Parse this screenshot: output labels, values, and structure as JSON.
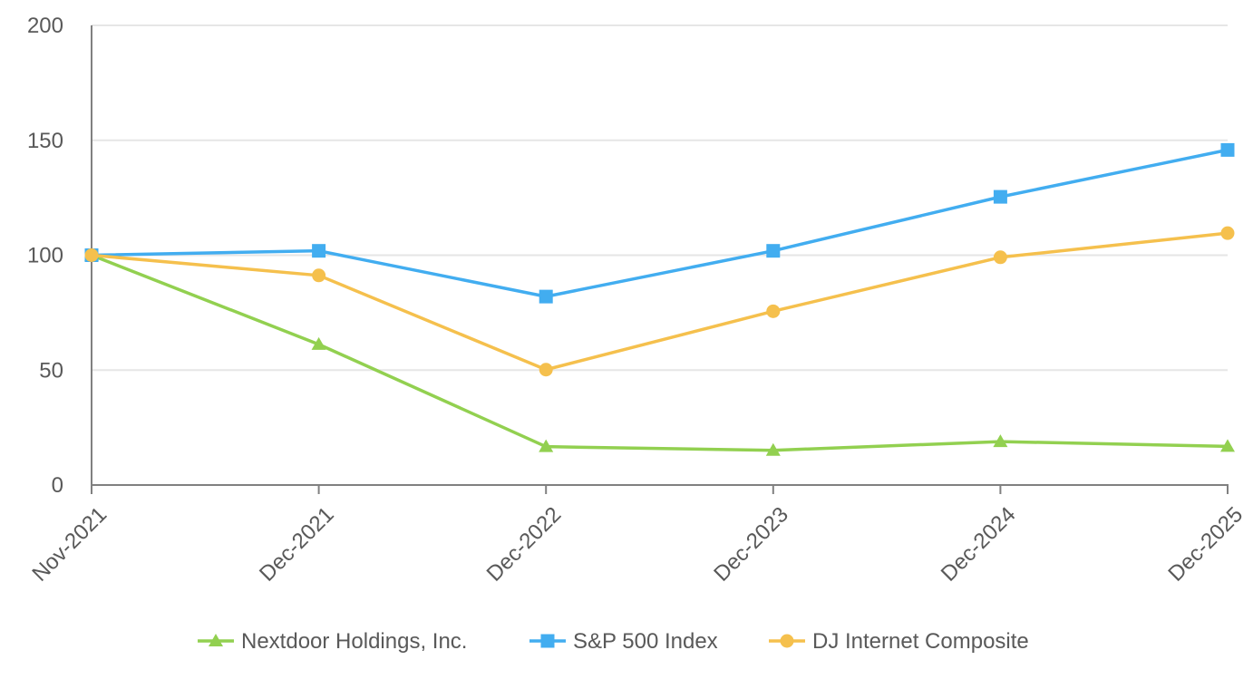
{
  "chart_data": {
    "type": "line",
    "title": "",
    "xlabel": "",
    "ylabel": "",
    "categories": [
      "Nov-2021",
      "Dec-2021",
      "Dec-2022",
      "Dec-2023",
      "Dec-2024",
      "Dec-2025"
    ],
    "ylim": [
      0,
      200
    ],
    "yticks": [
      0,
      50,
      100,
      150,
      200
    ],
    "grid": true,
    "legend_position": "bottom",
    "series": [
      {
        "name": "Nextdoor Holdings, Inc.",
        "marker": "triangle",
        "color": "#92D050",
        "values": [
          100,
          61.2,
          16.7,
          15.1,
          18.9,
          16.8
        ]
      },
      {
        "name": "S&P 500 Index",
        "marker": "square",
        "color": "#42ADF0",
        "values": [
          100,
          101.9,
          82.0,
          101.9,
          125.4,
          145.8
        ]
      },
      {
        "name": "DJ Internet Composite",
        "marker": "circle",
        "color": "#F5C04D",
        "values": [
          100,
          91.2,
          50.2,
          75.6,
          99.1,
          109.6
        ]
      }
    ]
  }
}
